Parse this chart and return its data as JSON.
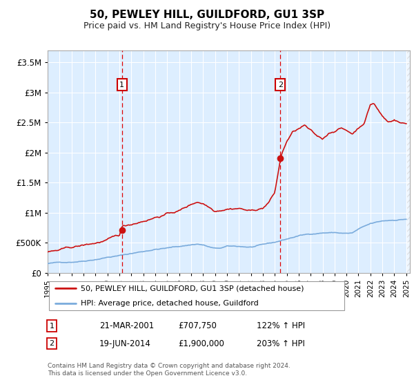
{
  "title": "50, PEWLEY HILL, GUILDFORD, GU1 3SP",
  "subtitle": "Price paid vs. HM Land Registry's House Price Index (HPI)",
  "legend_line1": "50, PEWLEY HILL, GUILDFORD, GU1 3SP (detached house)",
  "legend_line2": "HPI: Average price, detached house, Guildford",
  "annotation1_date": "21-MAR-2001",
  "annotation1_price": "£707,750",
  "annotation1_hpi": "122% ↑ HPI",
  "annotation1_year": 2001.22,
  "annotation1_value": 707750,
  "annotation2_date": "19-JUN-2014",
  "annotation2_price": "£1,900,000",
  "annotation2_hpi": "203% ↑ HPI",
  "annotation2_year": 2014.47,
  "annotation2_value": 1900000,
  "footer": "Contains HM Land Registry data © Crown copyright and database right 2024.\nThis data is licensed under the Open Government Licence v3.0.",
  "ylim": [
    0,
    3700000
  ],
  "xlim": [
    1995.0,
    2025.3
  ],
  "background_color": "#ddeeff",
  "hatch_start_year": 2025.0,
  "red_line_color": "#cc1111",
  "blue_line_color": "#7aabdc",
  "yticks": [
    0,
    500000,
    1000000,
    1500000,
    2000000,
    2500000,
    3000000,
    3500000
  ],
  "ytick_labels": [
    "£0",
    "£500K",
    "£1M",
    "£1.5M",
    "£2M",
    "£2.5M",
    "£3M",
    "£3.5M"
  ]
}
